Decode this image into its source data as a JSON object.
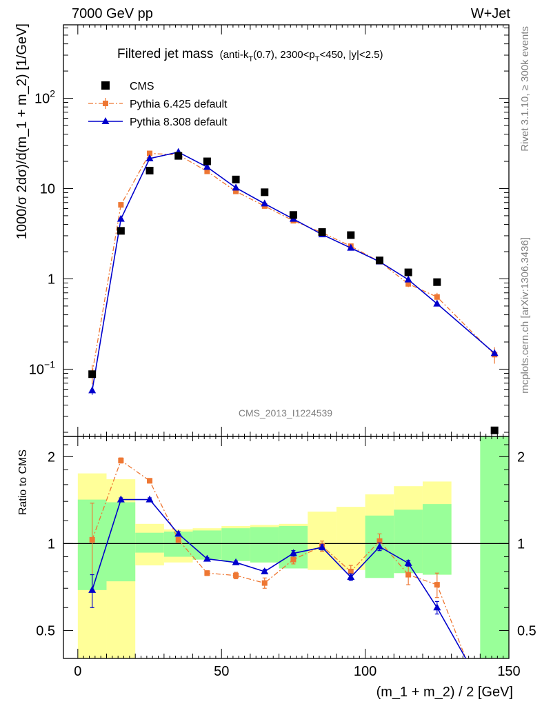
{
  "header": {
    "energy": "7000 GeV pp",
    "process": "W+Jet"
  },
  "title": {
    "main": "Filtered jet mass",
    "cut_parts": [
      "(anti-k",
      "T",
      "(0.7), 2300<p",
      "T",
      "<450, |y|<2.5)"
    ]
  },
  "side_labels": {
    "rivet": "Rivet 3.1.10, ≥ 300k events",
    "source": "mcplots.cern.ch [arXiv:1306.3436]"
  },
  "analysis_id": "CMS_2013_I1224539",
  "chart_data": [
    {
      "type": "scatter",
      "panel": "main",
      "ylabel": "1000/σ 2dσ)/d(m_1 + m_2) [1/GeV]",
      "yscale": "log",
      "ylim": [
        0.018,
        650
      ],
      "xlim": [
        -5,
        150
      ],
      "yticks": [
        {
          "value": 0.1,
          "base": "10",
          "exp": "−1"
        },
        {
          "value": 1,
          "label": "1"
        },
        {
          "value": 10,
          "label": "10"
        },
        {
          "value": 100,
          "base": "10",
          "exp": "2"
        }
      ],
      "legend_position": "top-left",
      "series": [
        {
          "name": "CMS",
          "color": "#000000",
          "marker": "square",
          "x": [
            5,
            15,
            25,
            35,
            45,
            55,
            65,
            75,
            85,
            95,
            105,
            115,
            125,
            145
          ],
          "y": [
            0.088,
            3.4,
            15.8,
            23.0,
            20.0,
            12.6,
            9.1,
            5.1,
            3.3,
            3.05,
            1.6,
            1.18,
            0.92,
            0.021
          ]
        },
        {
          "name": "Pythia 6.425 default",
          "color": "#ee7733",
          "marker": "small-square",
          "line": "dash-dot",
          "x": [
            5,
            15,
            25,
            35,
            45,
            55,
            65,
            75,
            85,
            95,
            105,
            115,
            125,
            145
          ],
          "y": [
            0.09,
            6.6,
            24.5,
            23.6,
            15.5,
            9.3,
            6.4,
            4.4,
            3.25,
            2.3,
            1.55,
            0.88,
            0.63,
            0.145
          ],
          "err": [
            0.022,
            0.25,
            0.5,
            0.5,
            0.35,
            0.2,
            0.18,
            0.15,
            0.12,
            0.12,
            0.1,
            0.07,
            0.07,
            0.03
          ]
        },
        {
          "name": "Pythia 8.308 default",
          "color": "#0000cc",
          "marker": "triangle",
          "line": "solid",
          "x": [
            5,
            15,
            25,
            35,
            45,
            55,
            65,
            75,
            85,
            95,
            105,
            115,
            125,
            145
          ],
          "y": [
            0.058,
            4.6,
            21.5,
            25.3,
            17.3,
            10.2,
            6.8,
            4.6,
            3.1,
            2.2,
            1.55,
            0.98,
            0.53,
            0.15
          ],
          "err": [
            0.006,
            0.12,
            0.4,
            0.5,
            0.3,
            0.2,
            0.15,
            0.1,
            0.08,
            0.06,
            0.05,
            0.04,
            0.03,
            0.01
          ]
        }
      ]
    },
    {
      "type": "scatter",
      "panel": "ratio",
      "xlabel": "(m_1 + m_2) / 2 [GeV]",
      "ylabel": "Ratio to CMS",
      "yscale": "log",
      "ylim": [
        0.4,
        2.35
      ],
      "xlim": [
        -5,
        150
      ],
      "xticks": [
        0,
        50,
        100,
        150
      ],
      "yticks": [
        0.5,
        1,
        2
      ],
      "reference": 1,
      "bands": {
        "edges": [
          0,
          10,
          20,
          30,
          40,
          50,
          60,
          70,
          80,
          90,
          100,
          110,
          120,
          130,
          140,
          150
        ],
        "yellow_lo": [
          0.4,
          0.4,
          0.84,
          0.86,
          0.88,
          0.87,
          0.86,
          0.82,
          0.81,
          0.81,
          0.8,
          0.79,
          0.78,
          0.76,
          0.4
        ],
        "yellow_hi": [
          1.75,
          1.67,
          1.17,
          1.12,
          1.13,
          1.15,
          1.16,
          1.17,
          1.29,
          1.34,
          1.48,
          1.58,
          1.64,
          1.83,
          2.35
        ],
        "green_lo": [
          0.69,
          0.74,
          0.93,
          0.9,
          0.88,
          0.87,
          0.86,
          0.82,
          0.81,
          0.81,
          0.76,
          0.79,
          0.78,
          0.76,
          0.4
        ],
        "green_hi": [
          1.42,
          1.39,
          1.09,
          1.1,
          1.11,
          1.13,
          1.14,
          1.15,
          1.18,
          1.2,
          1.25,
          1.31,
          1.37,
          1.48,
          2.35
        ],
        "green_hidden": [
          false,
          false,
          false,
          false,
          false,
          false,
          false,
          false,
          true,
          true,
          false,
          false,
          false,
          false,
          false
        ],
        "yellow_green_only": [
          false,
          false,
          false,
          false,
          false,
          false,
          false,
          false,
          false,
          false,
          false,
          false,
          false,
          false,
          true
        ]
      },
      "series": [
        {
          "name": "Pythia 6.425 default",
          "color": "#ee7733",
          "x": [
            5,
            15,
            25,
            35,
            45,
            55,
            65,
            75,
            85,
            95,
            105,
            115,
            125,
            135
          ],
          "y": [
            1.03,
            1.94,
            1.65,
            1.03,
            0.79,
            0.775,
            0.73,
            0.88,
            0.98,
            0.8,
            1.02,
            0.78,
            0.72,
            0.39
          ],
          "err": [
            0.35,
            0.04,
            0.03,
            0.02,
            0.015,
            0.02,
            0.03,
            0.03,
            0.04,
            0.04,
            0.06,
            0.06,
            0.07,
            0
          ]
        },
        {
          "name": "Pythia 8.308 default",
          "color": "#0000cc",
          "x": [
            5,
            15,
            25,
            35,
            45,
            55,
            65,
            75,
            85,
            95,
            105,
            115,
            125,
            135
          ],
          "y": [
            0.69,
            1.42,
            1.42,
            1.08,
            0.885,
            0.86,
            0.8,
            0.925,
            0.97,
            0.765,
            0.975,
            0.855,
            0.6,
            0.39
          ],
          "err": [
            0.09,
            0.02,
            0.02,
            0.02,
            0.01,
            0.01,
            0.015,
            0.02,
            0.02,
            0.02,
            0.03,
            0.02,
            0.03,
            0
          ]
        }
      ]
    }
  ]
}
